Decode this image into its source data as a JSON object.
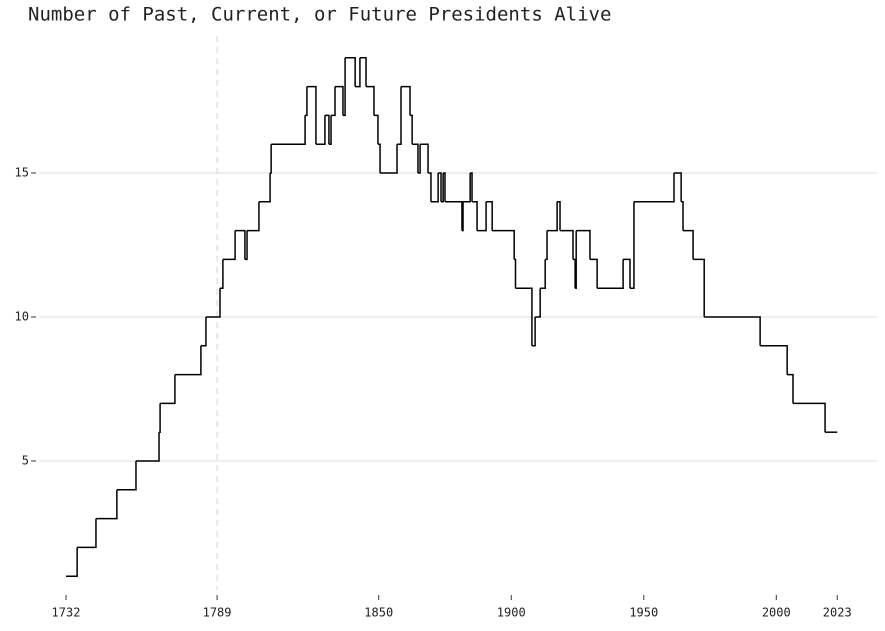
{
  "chart_data": {
    "type": "step",
    "title": "Number of Past, Current, or Future Presidents Alive",
    "x": [
      1732,
      1736.2,
      1743.3,
      1751.2,
      1758.4,
      1767.1,
      1767.5,
      1773.1,
      1782.9,
      1784.8,
      1790.1,
      1791.2,
      1795.8,
      1799.5,
      1800.3,
      1804.8,
      1809.0,
      1809.4,
      1822.2,
      1822.9,
      1826.3,
      1829.7,
      1831.2,
      1832.0,
      1833.5,
      1836.5,
      1837.3,
      1841.1,
      1842.9,
      1845.2,
      1848.2,
      1849.7,
      1850.5,
      1856.9,
      1858.4,
      1861.8,
      1862.6,
      1864.8,
      1865.6,
      1868.6,
      1869.7,
      1872.4,
      1873.5,
      1874.3,
      1875.0,
      1881.4,
      1881.8,
      1884.5,
      1885.2,
      1887.1,
      1890.5,
      1892.8,
      1901.1,
      1901.6,
      1907.8,
      1909.0,
      1910.9,
      1912.8,
      1913.5,
      1917.3,
      1918.4,
      1923.3,
      1924.1,
      1924.5,
      1929.7,
      1932.4,
      1942.2,
      1944.8,
      1946.3,
      1961.4,
      1964.1,
      1964.8,
      1968.6,
      1972.8,
      1993.9,
      2004.1,
      2006.3,
      2018.4,
      2023.0
    ],
    "values": [
      1,
      2,
      3,
      4,
      5,
      6,
      7,
      8,
      9,
      10,
      11,
      12,
      13,
      12,
      13,
      14,
      15,
      16,
      17,
      18,
      16,
      17,
      16,
      17,
      18,
      17,
      19,
      18,
      19,
      18,
      17,
      16,
      15,
      16,
      18,
      17,
      16,
      15,
      16,
      15,
      14,
      15,
      14,
      15,
      14,
      13,
      14,
      15,
      14,
      13,
      14,
      13,
      12,
      11,
      9,
      10,
      11,
      12,
      13,
      14,
      13,
      12,
      11,
      13,
      12,
      11,
      12,
      11,
      14,
      15,
      14,
      13,
      12,
      10,
      9,
      8,
      7,
      6,
      6
    ],
    "color": "#000000",
    "xlim": [
      1722,
      2038
    ],
    "xticks": [
      1732,
      1789,
      1850,
      1900,
      1950,
      2000,
      2023
    ],
    "ylim": [
      0.5,
      20
    ],
    "yticks": [
      5,
      10,
      15
    ],
    "grid": true,
    "vline_x": 1789
  }
}
